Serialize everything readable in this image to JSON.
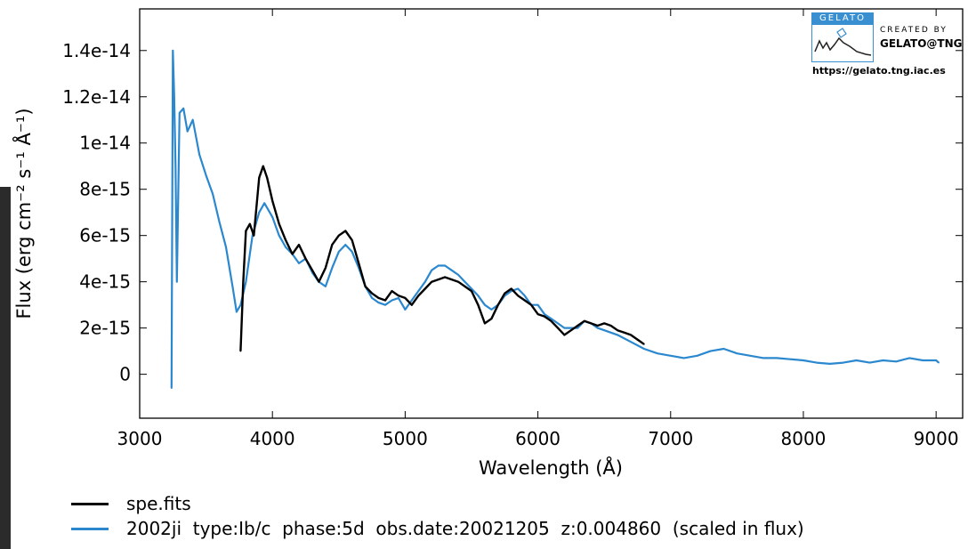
{
  "chart_data": {
    "type": "line",
    "xlabel": "Wavelength (Å)",
    "ylabel": "Flux (erg cm⁻² s⁻¹ Å⁻¹)",
    "xlim": [
      3000,
      9200
    ],
    "ylim": [
      -1.9e-15,
      1.58e-14
    ],
    "x_ticks": [
      3000,
      4000,
      5000,
      6000,
      7000,
      8000,
      9000
    ],
    "y_ticks": [
      0,
      2e-15,
      4e-15,
      6e-15,
      8e-15,
      1e-14,
      1.2e-14,
      1.4e-14
    ],
    "x_tick_labels": [
      "3000",
      "4000",
      "5000",
      "6000",
      "7000",
      "8000",
      "9000"
    ],
    "y_tick_labels": [
      "0",
      "2e-15",
      "4e-15",
      "6e-15",
      "8e-15",
      "1e-14",
      "1.2e-14",
      "1.4e-14"
    ],
    "grid": false,
    "legend_position": "bottom-left, below plot",
    "series": [
      {
        "name": "spe.fits",
        "color": "#000000",
        "x": [
          3760,
          3780,
          3800,
          3830,
          3860,
          3900,
          3930,
          3960,
          4000,
          4050,
          4100,
          4150,
          4200,
          4250,
          4300,
          4350,
          4400,
          4450,
          4500,
          4550,
          4600,
          4650,
          4700,
          4750,
          4800,
          4850,
          4900,
          4950,
          5000,
          5050,
          5100,
          5150,
          5200,
          5250,
          5300,
          5350,
          5400,
          5450,
          5500,
          5550,
          5600,
          5650,
          5700,
          5750,
          5800,
          5850,
          5900,
          5950,
          6000,
          6050,
          6100,
          6150,
          6200,
          6250,
          6300,
          6350,
          6400,
          6450,
          6500,
          6550,
          6600,
          6650,
          6700,
          6750,
          6800
        ],
        "y": [
          1e-15,
          4e-15,
          6.2e-15,
          6.5e-15,
          6e-15,
          8.5e-15,
          9e-15,
          8.5e-15,
          7.5e-15,
          6.5e-15,
          5.8e-15,
          5.2e-15,
          5.6e-15,
          5e-15,
          4.5e-15,
          4e-15,
          4.6e-15,
          5.6e-15,
          6e-15,
          6.2e-15,
          5.8e-15,
          4.8e-15,
          3.8e-15,
          3.5e-15,
          3.3e-15,
          3.2e-15,
          3.6e-15,
          3.4e-15,
          3.3e-15,
          3e-15,
          3.4e-15,
          3.7e-15,
          4e-15,
          4.1e-15,
          4.2e-15,
          4.1e-15,
          4e-15,
          3.8e-15,
          3.6e-15,
          3e-15,
          2.2e-15,
          2.4e-15,
          3e-15,
          3.5e-15,
          3.7e-15,
          3.4e-15,
          3.2e-15,
          3e-15,
          2.6e-15,
          2.5e-15,
          2.3e-15,
          2e-15,
          1.7e-15,
          1.9e-15,
          2.1e-15,
          2.3e-15,
          2.2e-15,
          2.1e-15,
          2.2e-15,
          2.1e-15,
          1.9e-15,
          1.8e-15,
          1.7e-15,
          1.5e-15,
          1.3e-15
        ]
      },
      {
        "name": "2002ji  type:Ib/c  phase:5d  obs.date:20021205  z:0.004860  (scaled in flux)",
        "color": "#2b88cf",
        "x": [
          3240,
          3250,
          3260,
          3270,
          3280,
          3300,
          3330,
          3360,
          3400,
          3450,
          3500,
          3550,
          3600,
          3650,
          3700,
          3730,
          3760,
          3800,
          3850,
          3900,
          3940,
          4000,
          4050,
          4100,
          4150,
          4200,
          4250,
          4300,
          4350,
          4400,
          4450,
          4500,
          4550,
          4600,
          4650,
          4700,
          4750,
          4800,
          4850,
          4900,
          4950,
          5000,
          5050,
          5100,
          5150,
          5200,
          5250,
          5300,
          5350,
          5400,
          5450,
          5500,
          5550,
          5600,
          5650,
          5700,
          5750,
          5800,
          5850,
          5900,
          5950,
          6000,
          6050,
          6100,
          6150,
          6200,
          6300,
          6350,
          6400,
          6450,
          6500,
          6600,
          6700,
          6800,
          6900,
          7000,
          7100,
          7200,
          7300,
          7400,
          7500,
          7600,
          7700,
          7800,
          7900,
          8000,
          8100,
          8200,
          8300,
          8400,
          8500,
          8600,
          8700,
          8800,
          8900,
          9000,
          9020
        ],
        "y": [
          -6e-16,
          1.4e-14,
          1.2e-14,
          9e-15,
          4e-15,
          1.13e-14,
          1.15e-14,
          1.05e-14,
          1.1e-14,
          9.5e-15,
          8.6e-15,
          7.8e-15,
          6.6e-15,
          5.5e-15,
          3.8e-15,
          2.7e-15,
          3e-15,
          4e-15,
          6e-15,
          7e-15,
          7.4e-15,
          6.8e-15,
          6e-15,
          5.5e-15,
          5.2e-15,
          4.8e-15,
          5e-15,
          4.4e-15,
          4e-15,
          3.8e-15,
          4.6e-15,
          5.3e-15,
          5.6e-15,
          5.3e-15,
          4.6e-15,
          3.8e-15,
          3.3e-15,
          3.1e-15,
          3e-15,
          3.2e-15,
          3.3e-15,
          2.8e-15,
          3.2e-15,
          3.6e-15,
          4e-15,
          4.5e-15,
          4.7e-15,
          4.7e-15,
          4.5e-15,
          4.3e-15,
          4e-15,
          3.7e-15,
          3.4e-15,
          3e-15,
          2.8e-15,
          3e-15,
          3.4e-15,
          3.6e-15,
          3.7e-15,
          3.4e-15,
          3e-15,
          3e-15,
          2.6e-15,
          2.4e-15,
          2.2e-15,
          2e-15,
          2e-15,
          2.3e-15,
          2.2e-15,
          2e-15,
          1.9e-15,
          1.7e-15,
          1.4e-15,
          1.1e-15,
          9e-16,
          8e-16,
          7e-16,
          8e-16,
          1e-15,
          1.1e-15,
          9e-16,
          8e-16,
          7e-16,
          7e-16,
          6.5e-16,
          6e-16,
          5e-16,
          4.5e-16,
          5e-16,
          6e-16,
          5e-16,
          6e-16,
          5.5e-16,
          7e-16,
          6e-16,
          6e-16,
          5e-16
        ]
      }
    ]
  },
  "legend": {
    "items": [
      {
        "label": "spe.fits",
        "color": "#000000"
      },
      {
        "label": "2002ji  type:Ib/c  phase:5d  obs.date:20021205  z:0.004860  (scaled in flux)",
        "color": "#2b88cf"
      }
    ]
  },
  "logo": {
    "header": "GELATO",
    "created_by": "CREATED BY",
    "brand": "GELATO@TNG",
    "url": "https://gelato.tng.iac.es",
    "accent_color": "#3a8fd0"
  }
}
